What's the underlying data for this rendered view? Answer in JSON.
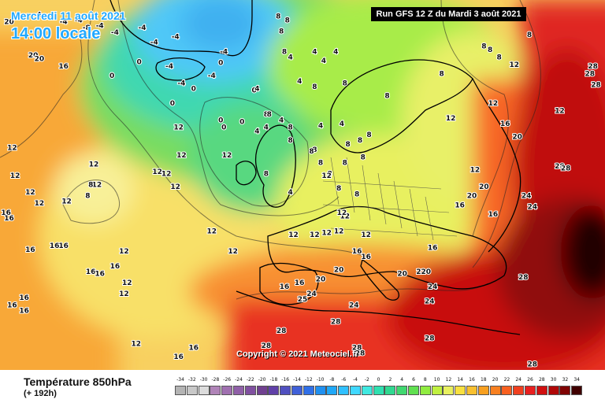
{
  "header": {
    "date": "Mercredi 11 août 2021",
    "time": "14:00 locale",
    "run": "Run GFS 12 Z du Mardi 3 août 2021"
  },
  "copyright": "Copyright © 2021 Meteociel.fr",
  "parameter": {
    "name": "Température 850hPa",
    "lead": "(+ 192h)"
  },
  "legend": {
    "ticks": [
      {
        "label": "-34",
        "color": "#b4b4b4"
      },
      {
        "label": "-32",
        "color": "#c8c8c8"
      },
      {
        "label": "-30",
        "color": "#dcdcdc"
      },
      {
        "label": "-28",
        "color": "#b084b8"
      },
      {
        "label": "-26",
        "color": "#a070b0"
      },
      {
        "label": "-24",
        "color": "#9060a8"
      },
      {
        "label": "-22",
        "color": "#8050a0"
      },
      {
        "label": "-20",
        "color": "#704090"
      },
      {
        "label": "-18",
        "color": "#6040a8"
      },
      {
        "label": "-16",
        "color": "#5050c0"
      },
      {
        "label": "-14",
        "color": "#4060d8"
      },
      {
        "label": "-12",
        "color": "#3070e8"
      },
      {
        "label": "-10",
        "color": "#2090f0"
      },
      {
        "label": "-8",
        "color": "#20a8f8"
      },
      {
        "label": "-6",
        "color": "#30c0ff"
      },
      {
        "label": "-4",
        "color": "#40d8ff"
      },
      {
        "label": "-2",
        "color": "#40e8e0"
      },
      {
        "label": "0",
        "color": "#30e0b0"
      },
      {
        "label": "2",
        "color": "#30d890"
      },
      {
        "label": "4",
        "color": "#40d870"
      },
      {
        "label": "6",
        "color": "#60e050"
      },
      {
        "label": "8",
        "color": "#90ec40"
      },
      {
        "label": "10",
        "color": "#c0f040"
      },
      {
        "label": "12",
        "color": "#e8f060"
      },
      {
        "label": "14",
        "color": "#f8e040"
      },
      {
        "label": "16",
        "color": "#f8c030"
      },
      {
        "label": "18",
        "color": "#f8a020"
      },
      {
        "label": "20",
        "color": "#f88020"
      },
      {
        "label": "22",
        "color": "#f86020"
      },
      {
        "label": "24",
        "color": "#f04020"
      },
      {
        "label": "26",
        "color": "#e82020"
      },
      {
        "label": "28",
        "color": "#d01010"
      },
      {
        "label": "30",
        "color": "#b00808"
      },
      {
        "label": "32",
        "color": "#800404"
      },
      {
        "label": "34",
        "color": "#400000"
      }
    ]
  },
  "map": {
    "colors": {
      "cold_blue": "#48c8f8",
      "light_blue": "#70dcff",
      "teal": "#40d8b0",
      "green": "#60d860",
      "lime": "#a8ec40",
      "yellow_green": "#d0f048",
      "pale_yellow": "#f8f088",
      "yellow": "#f8e048",
      "light_orange": "#f8c040",
      "orange": "#f89028",
      "dark_orange": "#f06020",
      "red": "#e82820",
      "dark_red": "#c01010",
      "maroon": "#800808",
      "black_red": "#300000"
    },
    "isotherm_labels": [
      {
        "v": "-4",
        "x": 6.2,
        "y": 4.0
      },
      {
        "v": "-4",
        "x": 10.5,
        "y": 6.0
      },
      {
        "v": "-4",
        "x": 13.0,
        "y": 5.5
      },
      {
        "v": "-8",
        "x": 14.3,
        "y": 7.5
      },
      {
        "v": "-4",
        "x": 16.5,
        "y": 7.0
      },
      {
        "v": "-4",
        "x": 19.0,
        "y": 8.8
      },
      {
        "v": "-4",
        "x": 23.5,
        "y": 7.5
      },
      {
        "v": "-4",
        "x": 25.5,
        "y": 11.5
      },
      {
        "v": "-4",
        "x": 28.0,
        "y": 18.0
      },
      {
        "v": "-4",
        "x": 29.0,
        "y": 10.0
      },
      {
        "v": "0",
        "x": 18.5,
        "y": 20.5
      },
      {
        "v": "0",
        "x": 23.0,
        "y": 16.8
      },
      {
        "v": "0",
        "x": 28.5,
        "y": 28.0
      },
      {
        "v": "0",
        "x": 36.5,
        "y": 32.5
      },
      {
        "v": "-4",
        "x": 35.0,
        "y": 20.5
      },
      {
        "v": "-4",
        "x": 37.0,
        "y": 14.0
      },
      {
        "v": "-4",
        "x": 30.0,
        "y": 22.5
      },
      {
        "v": "0",
        "x": 32.0,
        "y": 24.0
      },
      {
        "v": "0",
        "x": 42.0,
        "y": 24.5
      },
      {
        "v": "0",
        "x": 36.5,
        "y": 17.0
      },
      {
        "v": "8",
        "x": 46.0,
        "y": 4.5
      },
      {
        "v": "8",
        "x": 47.5,
        "y": 5.5
      },
      {
        "v": "8",
        "x": 46.5,
        "y": 8.5
      },
      {
        "v": "4",
        "x": 52.0,
        "y": 14.0
      },
      {
        "v": "4",
        "x": 53.5,
        "y": 16.5
      },
      {
        "v": "4",
        "x": 55.5,
        "y": 14.0
      },
      {
        "v": "8",
        "x": 52.0,
        "y": 23.5
      },
      {
        "v": "8",
        "x": 47.0,
        "y": 14.0
      },
      {
        "v": "4",
        "x": 48.0,
        "y": 15.5
      },
      {
        "v": "4",
        "x": 49.5,
        "y": 22.0
      },
      {
        "v": "4",
        "x": 46.5,
        "y": 32.5
      },
      {
        "v": "8",
        "x": 57.0,
        "y": 22.5
      },
      {
        "v": "4",
        "x": 56.5,
        "y": 33.5
      },
      {
        "v": "8",
        "x": 44.0,
        "y": 31.0
      },
      {
        "v": "0",
        "x": 40.0,
        "y": 33.0
      },
      {
        "v": "0",
        "x": 37.0,
        "y": 34.5
      },
      {
        "v": "4",
        "x": 53.0,
        "y": 34.0
      },
      {
        "v": "4",
        "x": 42.5,
        "y": 24.0
      },
      {
        "v": "4",
        "x": 44.0,
        "y": 34.5
      },
      {
        "v": "8",
        "x": 48.0,
        "y": 34.5
      },
      {
        "v": "8",
        "x": 52.0,
        "y": 40.5
      },
      {
        "v": "8",
        "x": 48.0,
        "y": 38.0
      },
      {
        "v": "4",
        "x": 42.5,
        "y": 35.5
      },
      {
        "v": "8",
        "x": 44.5,
        "y": 31.0
      },
      {
        "v": "4",
        "x": 48.0,
        "y": 52.0
      },
      {
        "v": "8",
        "x": 44.0,
        "y": 47.0
      },
      {
        "v": "8",
        "x": 51.5,
        "y": 41.0
      },
      {
        "v": "8",
        "x": 53.0,
        "y": 44.0
      },
      {
        "v": "8",
        "x": 57.0,
        "y": 44.0
      },
      {
        "v": "8",
        "x": 54.5,
        "y": 47.0
      },
      {
        "v": "8",
        "x": 57.5,
        "y": 39.0
      },
      {
        "v": "8",
        "x": 59.5,
        "y": 38.0
      },
      {
        "v": "8",
        "x": 61.0,
        "y": 36.5
      },
      {
        "v": "8",
        "x": 60.0,
        "y": 42.5
      },
      {
        "v": "8",
        "x": 56.0,
        "y": 51.0
      },
      {
        "v": "8",
        "x": 59.0,
        "y": 52.5
      },
      {
        "v": "12",
        "x": 54.0,
        "y": 47.5
      },
      {
        "v": "12",
        "x": 29.5,
        "y": 34.5
      },
      {
        "v": "12",
        "x": 30.0,
        "y": 42.0
      },
      {
        "v": "12",
        "x": 26.0,
        "y": 46.5
      },
      {
        "v": "12",
        "x": 27.5,
        "y": 47.0
      },
      {
        "v": "12",
        "x": 29.0,
        "y": 50.5
      },
      {
        "v": "12",
        "x": 15.5,
        "y": 44.5
      },
      {
        "v": "12",
        "x": 11.0,
        "y": 54.5
      },
      {
        "v": "12",
        "x": 5.0,
        "y": 52.0
      },
      {
        "v": "12",
        "x": 6.5,
        "y": 55.0
      },
      {
        "v": "12",
        "x": 2.0,
        "y": 40.0
      },
      {
        "v": "12",
        "x": 2.5,
        "y": 47.5
      },
      {
        "v": "12",
        "x": 20.5,
        "y": 68.0
      },
      {
        "v": "12",
        "x": 20.5,
        "y": 79.5
      },
      {
        "v": "12",
        "x": 21.0,
        "y": 76.5
      },
      {
        "v": "12",
        "x": 22.5,
        "y": 93.0
      },
      {
        "v": "12",
        "x": 38.5,
        "y": 68.0
      },
      {
        "v": "12",
        "x": 48.5,
        "y": 63.5
      },
      {
        "v": "12",
        "x": 48.5,
        "y": 63.5
      },
      {
        "v": "12",
        "x": 52.0,
        "y": 63.5
      },
      {
        "v": "12",
        "x": 54.0,
        "y": 63.0
      },
      {
        "v": "12",
        "x": 56.0,
        "y": 62.5
      },
      {
        "v": "12",
        "x": 60.5,
        "y": 63.5
      },
      {
        "v": "12",
        "x": 57.0,
        "y": 58.5
      },
      {
        "v": "12",
        "x": 74.5,
        "y": 32.0
      },
      {
        "v": "12",
        "x": 81.5,
        "y": 28.0
      },
      {
        "v": "12",
        "x": 85.0,
        "y": 17.5
      },
      {
        "v": "8",
        "x": 73.0,
        "y": 20.0
      },
      {
        "v": "8",
        "x": 80.0,
        "y": 12.5
      },
      {
        "v": "8",
        "x": 81.0,
        "y": 13.5
      },
      {
        "v": "8",
        "x": 82.5,
        "y": 15.5
      },
      {
        "v": "8",
        "x": 64.0,
        "y": 26.0
      },
      {
        "v": "8",
        "x": 79.5,
        "y": 3.5
      },
      {
        "v": "8",
        "x": 87.5,
        "y": 9.5
      },
      {
        "v": "12",
        "x": 92.5,
        "y": 30.0
      },
      {
        "v": "16",
        "x": 83.5,
        "y": 33.5
      },
      {
        "v": "20",
        "x": 85.5,
        "y": 37.0
      },
      {
        "v": "20",
        "x": 80.0,
        "y": 50.5
      },
      {
        "v": "20",
        "x": 78.0,
        "y": 53.0
      },
      {
        "v": "16",
        "x": 76.0,
        "y": 55.5
      },
      {
        "v": "16",
        "x": 81.5,
        "y": 58.0
      },
      {
        "v": "24",
        "x": 87.0,
        "y": 53.0
      },
      {
        "v": "24",
        "x": 88.0,
        "y": 56.0
      },
      {
        "v": "28",
        "x": 92.5,
        "y": 45.0
      },
      {
        "v": "28",
        "x": 93.5,
        "y": 45.5
      },
      {
        "v": "28",
        "x": 97.5,
        "y": 20.0
      },
      {
        "v": "28",
        "x": 98.0,
        "y": 18.0
      },
      {
        "v": "28",
        "x": 98.5,
        "y": 23.0
      },
      {
        "v": "16",
        "x": 59.0,
        "y": 68.0
      },
      {
        "v": "16",
        "x": 60.5,
        "y": 69.5
      },
      {
        "v": "20",
        "x": 56.0,
        "y": 73.0
      },
      {
        "v": "20",
        "x": 53.0,
        "y": 75.5
      },
      {
        "v": "16",
        "x": 49.5,
        "y": 76.5
      },
      {
        "v": "16",
        "x": 47.0,
        "y": 77.5
      },
      {
        "v": "24",
        "x": 51.5,
        "y": 79.5
      },
      {
        "v": "25",
        "x": 50.0,
        "y": 81.0
      },
      {
        "v": "20",
        "x": 66.5,
        "y": 74.0
      },
      {
        "v": "220",
        "x": 70.0,
        "y": 73.5
      },
      {
        "v": "24",
        "x": 71.5,
        "y": 77.5
      },
      {
        "v": "24",
        "x": 58.5,
        "y": 82.5
      },
      {
        "v": "24",
        "x": 71.0,
        "y": 81.5
      },
      {
        "v": "28",
        "x": 55.5,
        "y": 87.0
      },
      {
        "v": "28",
        "x": 46.5,
        "y": 89.5
      },
      {
        "v": "28",
        "x": 44.0,
        "y": 93.5
      },
      {
        "v": "28",
        "x": 59.0,
        "y": 94.0
      },
      {
        "v": "28",
        "x": 59.5,
        "y": 95.5
      },
      {
        "v": "28",
        "x": 86.5,
        "y": 75.0
      },
      {
        "v": "28",
        "x": 88.0,
        "y": 98.5
      },
      {
        "v": "28",
        "x": 71.0,
        "y": 91.5
      },
      {
        "v": "16",
        "x": 32.0,
        "y": 94.0
      },
      {
        "v": "16",
        "x": 29.5,
        "y": 96.5
      },
      {
        "v": "16",
        "x": 10.5,
        "y": 66.5
      },
      {
        "v": "16",
        "x": 9.0,
        "y": 66.5
      },
      {
        "v": "16",
        "x": 15.0,
        "y": 73.5
      },
      {
        "v": "16",
        "x": 16.5,
        "y": 74.0
      },
      {
        "v": "16",
        "x": 19.0,
        "y": 72.0
      },
      {
        "v": "16",
        "x": 5.0,
        "y": 67.5
      },
      {
        "v": "16",
        "x": 4.0,
        "y": 80.5
      },
      {
        "v": "16",
        "x": 2.0,
        "y": 82.5
      },
      {
        "v": "16",
        "x": 4.0,
        "y": 84.0
      },
      {
        "v": "16",
        "x": 1.0,
        "y": 57.5
      },
      {
        "v": "16",
        "x": 1.5,
        "y": 59.0
      },
      {
        "v": "16",
        "x": 10.5,
        "y": 18.0
      },
      {
        "v": "20",
        "x": 5.5,
        "y": 15.0
      },
      {
        "v": "20",
        "x": 6.5,
        "y": 16.0
      },
      {
        "v": "20",
        "x": 1.5,
        "y": 6.0
      },
      {
        "v": "12",
        "x": 16.0,
        "y": 50.0
      },
      {
        "v": "8",
        "x": 15.0,
        "y": 50.0
      },
      {
        "v": "8",
        "x": 14.5,
        "y": 53.0
      },
      {
        "v": "12",
        "x": 37.5,
        "y": 42.0
      },
      {
        "v": "12",
        "x": 35.0,
        "y": 62.5
      },
      {
        "v": "12",
        "x": 56.5,
        "y": 57.5
      },
      {
        "v": "12",
        "x": 78.5,
        "y": 46.0
      },
      {
        "v": "16",
        "x": 71.5,
        "y": 67.0
      }
    ]
  }
}
